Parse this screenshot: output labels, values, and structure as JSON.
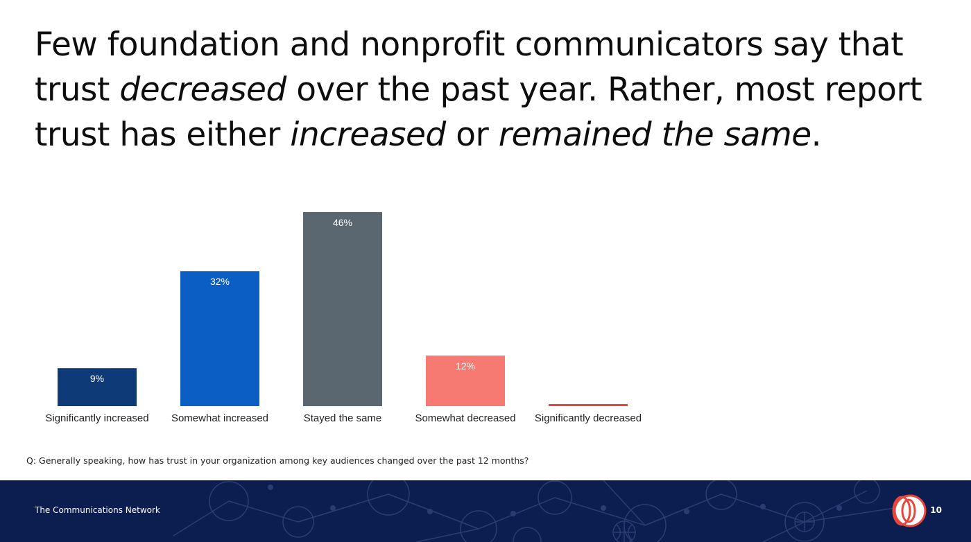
{
  "title": {
    "line1": "Few foundation and nonprofit communicators say that",
    "line2_pre": "trust ",
    "line2_em": "decreased",
    "line2_post": " over the past year. Rather, most report",
    "line3_pre": "trust has either ",
    "line3_em1": "increased",
    "line3_mid": " or ",
    "line3_em2": "remained the same",
    "line3_post": "."
  },
  "chart_data": {
    "type": "bar",
    "categories": [
      "Significantly increased",
      "Somewhat increased",
      "Stayed the same",
      "Somewhat decreased",
      "Significantly decreased"
    ],
    "values": [
      9,
      32,
      46,
      12,
      0.5
    ],
    "data_labels": [
      "9%",
      "32%",
      "46%",
      "12%",
      ""
    ],
    "colors": [
      "#0e3a78",
      "#0b5fc4",
      "#5a6670",
      "#f77a72",
      "#e8453c"
    ],
    "ylim": [
      0,
      46
    ],
    "grid": false,
    "legend": "none"
  },
  "question": "Q: Generally speaking, how has trust in your organization among key audiences changed over the past 12 months?",
  "footer": {
    "org": "The Communications Network",
    "page": "10",
    "logo_icon": "communications-network-logo-icon"
  }
}
